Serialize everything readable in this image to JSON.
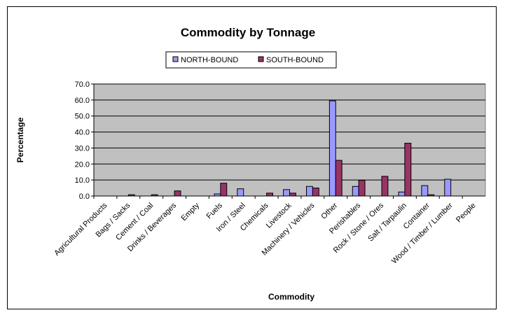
{
  "chart_data": {
    "type": "bar",
    "title": "Commodity by Tonnage",
    "xlabel": "Commodity",
    "ylabel": "Percentage",
    "ylim": [
      0,
      70
    ],
    "yticks": [
      "0.0",
      "10.0",
      "20.0",
      "30.0",
      "40.0",
      "50.0",
      "60.0",
      "70.0"
    ],
    "grid": true,
    "legend": "top-center",
    "categories": [
      "Agricultural Products",
      "Bags / Sacks",
      "Cement / Coal",
      "Drinks / Beverages",
      "Empty",
      "Fuels",
      "Iron / Steel",
      "Chemicals",
      "Livestock",
      "Machinery / Vehicles",
      "Other",
      "Perishables",
      "Rock / Stone / Ores",
      "Salt / Tarpaulin",
      "Container",
      "Wood / Timber / Lumber",
      "People"
    ],
    "series": [
      {
        "name": "NORTH-BOUND",
        "color": "#9999ff",
        "values": [
          0,
          0,
          0,
          0,
          0,
          1.3,
          4.5,
          0,
          4.0,
          6.0,
          59.5,
          6.0,
          0,
          2.5,
          6.5,
          10.5,
          0
        ]
      },
      {
        "name": "SOUTH-BOUND",
        "color": "#993366",
        "values": [
          0,
          0.8,
          0.8,
          3.2,
          0,
          8.0,
          0,
          1.8,
          1.8,
          5.0,
          22.3,
          9.8,
          12.3,
          33.0,
          0.8,
          0,
          0
        ]
      }
    ],
    "plot_background": "#c0c0c0"
  }
}
